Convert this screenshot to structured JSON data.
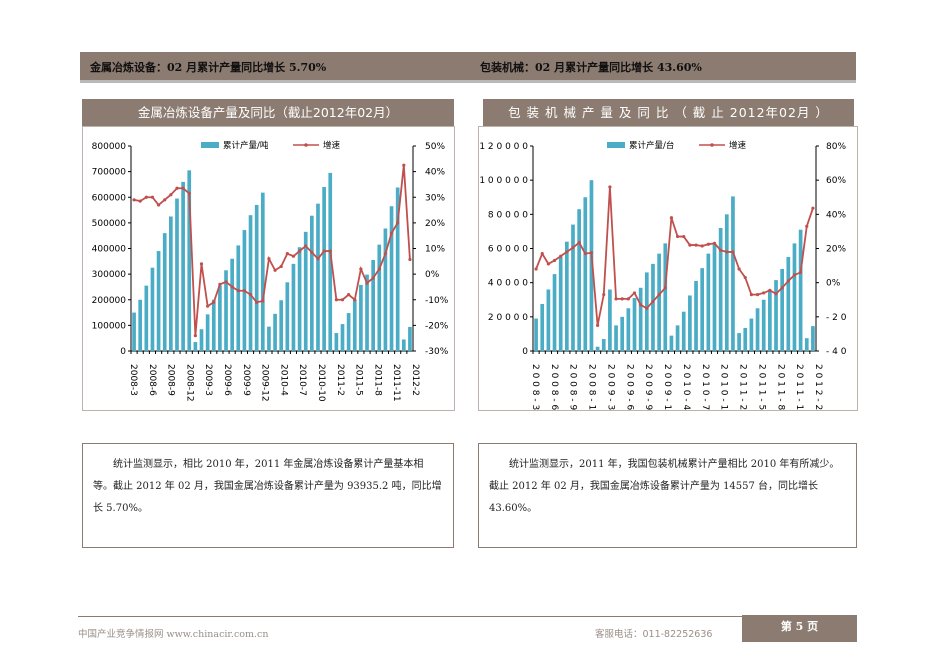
{
  "header": {
    "left": "金属冶炼设备：02 月累计产量同比增长 5.70%",
    "right": "包装机械：02 月累计产量同比增长 43.60%"
  },
  "colors": {
    "brand": "#8c7b70",
    "bar": "#4bacc6",
    "line": "#c0504d"
  },
  "chart_data": [
    {
      "type": "bar+line",
      "title": "金属冶炼设备产量及同比（截止2012年02月）",
      "legend": [
        "累计产量/吨",
        "增速"
      ],
      "legend_placement": "top",
      "yticks": [
        "800000",
        "700000",
        "600000",
        "500000",
        "400000",
        "300000",
        "200000",
        "100000",
        "0"
      ],
      "y2ticks": [
        "50%",
        "40%",
        "30%",
        "20%",
        "10%",
        "0%",
        "-10%",
        "-20%",
        "-30%"
      ],
      "ylim": [
        0,
        800000
      ],
      "y2lim": [
        -30,
        50
      ],
      "xticks": [
        "2008-3",
        "2008-6",
        "2008-9",
        "2008-12",
        "2009-3",
        "2009-6",
        "2009-9",
        "2009-12",
        "2010-4",
        "2010-7",
        "2010-10",
        "2011-2",
        "2011-5",
        "2011-8",
        "2011-11",
        "2012-2"
      ],
      "bars": [
        150000,
        200000,
        255000,
        325000,
        390000,
        460000,
        525000,
        595000,
        660000,
        705000,
        35000,
        85000,
        143000,
        200000,
        255000,
        315000,
        360000,
        412000,
        472000,
        530000,
        570000,
        618000,
        95000,
        145000,
        198000,
        268000,
        340000,
        405000,
        465000,
        528000,
        575000,
        640000,
        695000,
        70000,
        105000,
        148000,
        200000,
        258000,
        298000,
        355000,
        415000,
        478000,
        565000,
        638000,
        45000,
        93935
      ],
      "growth": [
        29,
        28.5,
        30,
        30,
        27,
        29,
        31,
        33.5,
        33.5,
        31.5,
        -24,
        4,
        -12.5,
        -11,
        -4,
        -3,
        -5,
        -6.5,
        -6.5,
        -8,
        -11,
        -10.5,
        6,
        1.5,
        3,
        8,
        7,
        9,
        11,
        8.5,
        6,
        9,
        9,
        -10,
        -10,
        -8,
        -10,
        2,
        -3.5,
        -1.5,
        2,
        8,
        16,
        20,
        42.5,
        5.7
      ]
    },
    {
      "type": "bar+line",
      "title": "包 装 机 械 产 量 及 同 比 （ 截 止 2012年02月 ）",
      "legend": [
        "累计产量/台",
        "增速"
      ],
      "legend_placement": "top",
      "yticks": [
        "1 2 0 0 0 0",
        "1 0 0 0 0 0",
        "8 0 0 0 0",
        "6 0 0 0 0",
        "4 0 0 0 0",
        "2 0 0 0 0",
        "0"
      ],
      "y2ticks": [
        "80%",
        "60%",
        "40%",
        "20%",
        "0%",
        "- 2 0",
        "- 4 0"
      ],
      "ylim": [
        0,
        120000
      ],
      "y2lim": [
        -40,
        80
      ],
      "xticks": [
        "2 0 0 8 - 3",
        "2 0 0 8 - 6",
        "2 0 0 8 - 9",
        "2 0 0 8 - 1",
        "2 0 0 9 - 3",
        "2 0 0 9 - 6",
        "2 0 0 9 - 9",
        "2 0 0 9 - 1",
        "2 0 1 0 - 4",
        "2 0 1 0 - 7",
        "2 0 1 0 - 1",
        "2 0 1 1 - 2",
        "2 0 1 1 - 5",
        "2 0 1 1 - 8",
        "2 0 1 1 - 1",
        "2 0 1 2 - 2"
      ],
      "bars": [
        19000,
        27500,
        36000,
        45000,
        55000,
        64000,
        74000,
        83000,
        90000,
        100000,
        2500,
        7000,
        36000,
        15000,
        20000,
        25000,
        31000,
        37000,
        46000,
        51000,
        57000,
        63000,
        9000,
        15000,
        23000,
        32500,
        41000,
        48500,
        57000,
        63000,
        72000,
        80000,
        90500,
        10500,
        13500,
        19000,
        25000,
        30000,
        35000,
        41500,
        48000,
        55000,
        63000,
        71000,
        7500,
        14557
      ],
      "growth": [
        8,
        17,
        11,
        13,
        15.5,
        18,
        20.5,
        23.5,
        17,
        17.5,
        -25,
        -7,
        56,
        -9.5,
        -9.5,
        -9.5,
        -6,
        -13,
        -15,
        -11,
        -7,
        -3,
        38,
        27,
        27,
        22,
        22,
        21.5,
        22.5,
        23,
        19,
        18,
        18,
        8,
        3,
        -7,
        -7,
        -6,
        -4.5,
        -6.5,
        -3,
        1,
        4.5,
        6,
        33,
        43.6
      ]
    }
  ],
  "text": {
    "left": "统计监测显示，相比 2010 年，2011 年金属冶炼设备累计产量基本相等。截止 2012 年 02 月，我国金属冶炼设备累计产量为 93935.2 吨，同比增长 5.70%。",
    "right": "统计监测显示，2011 年，我国包装机械累计产量相比 2010 年有所减少。截止 2012 年 02 月，我国金属冶炼设备累计产量为 14557 台，同比增长 43.60%。"
  },
  "footer": {
    "site": "中国产业竞争情报网  www.chinacir.com.cn",
    "phone": "客服电话：011-82252636",
    "page": "第 5 页"
  }
}
